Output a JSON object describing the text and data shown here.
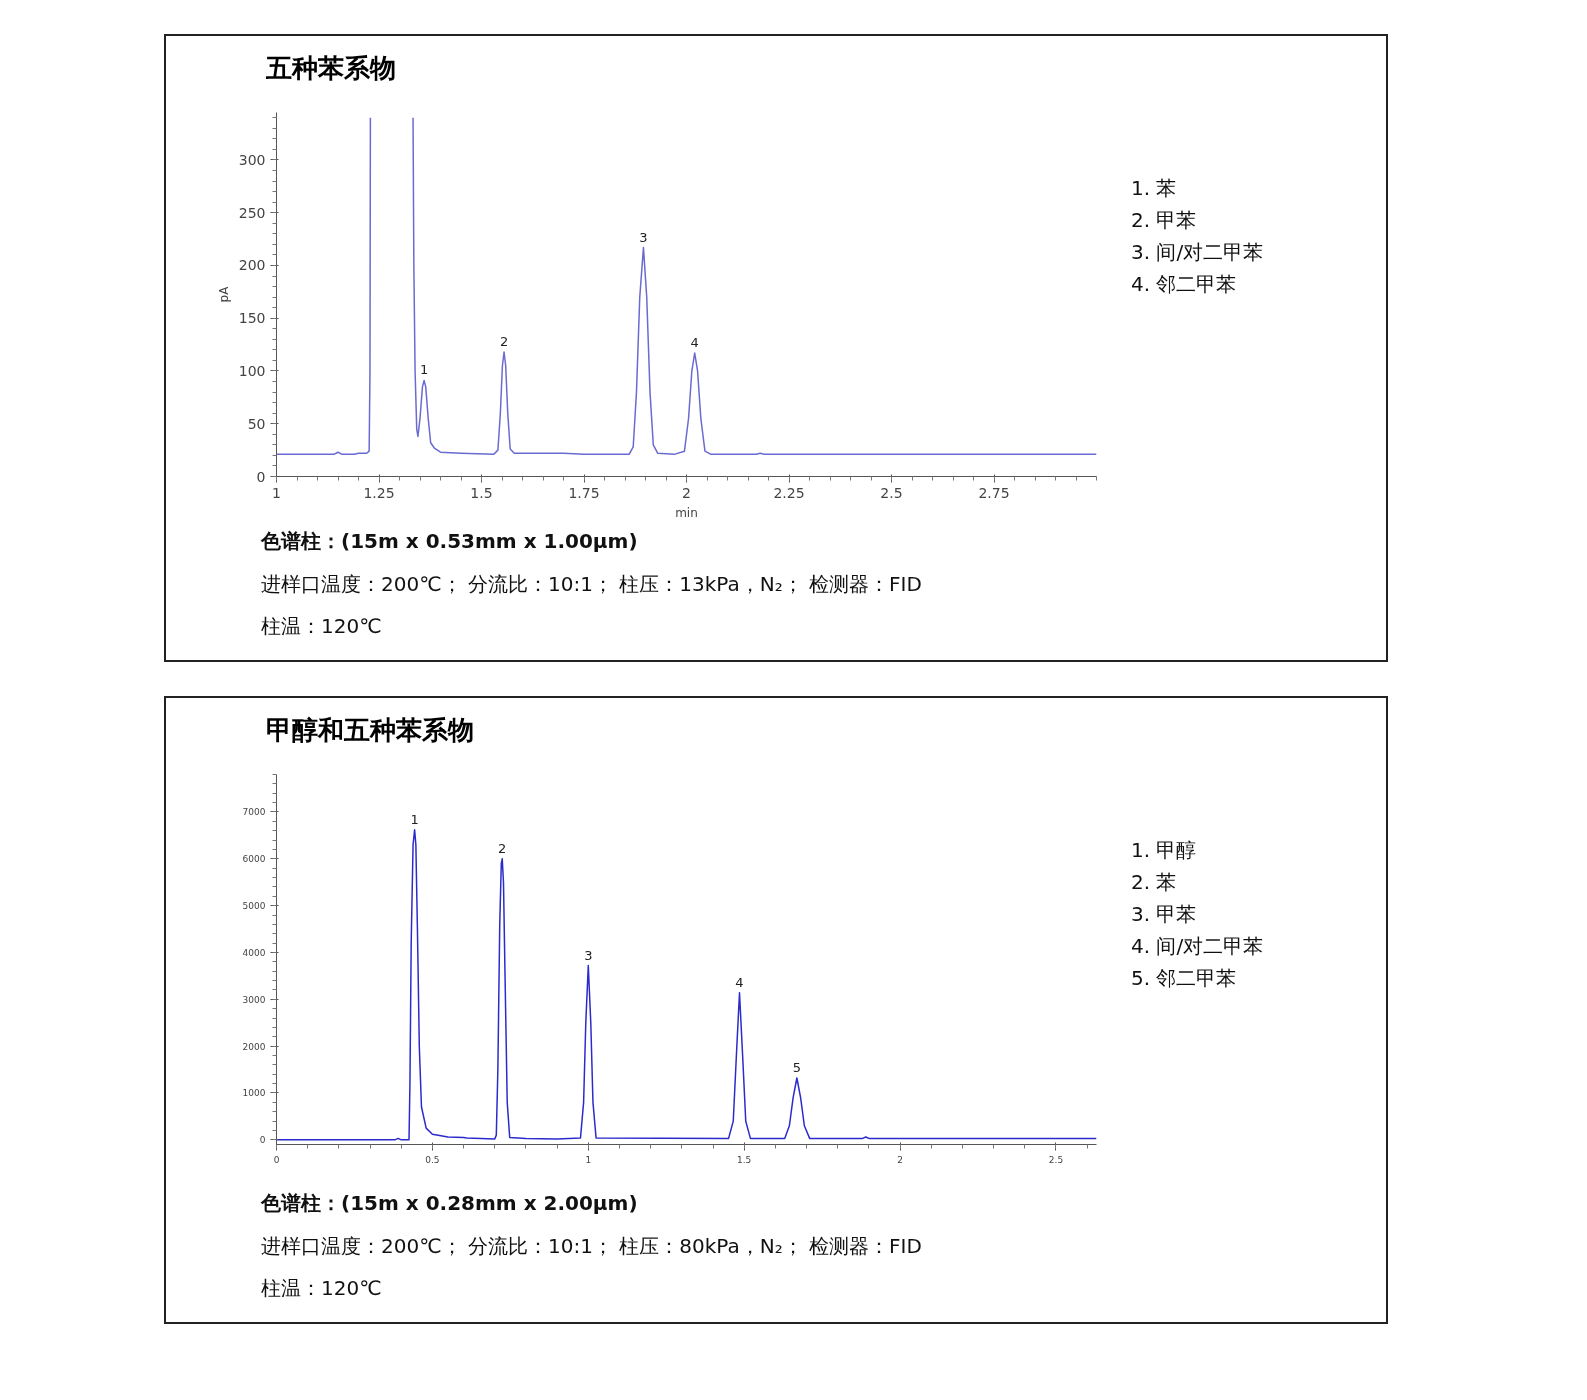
{
  "chart_data": [
    {
      "type": "line",
      "title": "五种苯系物",
      "xlabel": "min",
      "ylabel": "pA",
      "x": [
        1.0,
        1.14,
        1.15,
        1.16,
        1.19,
        1.2,
        1.22,
        1.226,
        1.228,
        1.229,
        1.28,
        1.333,
        1.335,
        1.338,
        1.342,
        1.345,
        1.35,
        1.356,
        1.36,
        1.364,
        1.37,
        1.376,
        1.385,
        1.4,
        1.45,
        1.53,
        1.54,
        1.546,
        1.551,
        1.555,
        1.559,
        1.564,
        1.57,
        1.58,
        1.7,
        1.75,
        1.86,
        1.87,
        1.878,
        1.886,
        1.895,
        1.903,
        1.911,
        1.919,
        1.93,
        1.97,
        1.995,
        2.005,
        2.013,
        2.02,
        2.027,
        2.035,
        2.045,
        2.06,
        2.17,
        2.18,
        2.19,
        3.0
      ],
      "series": [
        {
          "color": "#6a6ad2",
          "values": [
            21,
            21,
            23,
            21,
            21,
            22,
            22,
            24,
            100,
            340,
            null,
            340,
            200,
            100,
            45,
            38,
            55,
            85,
            91,
            85,
            55,
            32,
            27,
            23,
            22,
            21,
            25,
            60,
            105,
            118,
            105,
            60,
            26,
            22,
            22,
            21,
            21,
            28,
            80,
            170,
            217,
            170,
            80,
            30,
            22,
            21,
            24,
            55,
            100,
            117,
            100,
            55,
            24,
            21,
            21,
            22,
            21,
            21
          ]
        }
      ],
      "xlim": [
        1,
        3.0
      ],
      "ylim": [
        0,
        345
      ],
      "xticks": [
        1,
        1.25,
        1.5,
        1.75,
        2,
        2.25,
        2.5,
        2.75
      ],
      "yticks": [
        0,
        50,
        100,
        150,
        200,
        250,
        300
      ],
      "annotations": [
        {
          "text": "1",
          "x": 1.36,
          "y": 91
        },
        {
          "text": "2",
          "x": 1.555,
          "y": 118
        },
        {
          "text": "3",
          "x": 1.895,
          "y": 217
        },
        {
          "text": "4",
          "x": 2.02,
          "y": 117
        },
        "1.  苯",
        "2.  甲苯",
        "3.  间/对二甲苯",
        "4.  邻二甲苯",
        "色谱柱：(15m x 0.53mm x 1.00μm)",
        "进样口温度：200℃；  分流比：10:1；  柱压：13kPa，N₂；  检测器：FID",
        "柱温：120℃"
      ]
    },
    {
      "type": "line",
      "title": "甲醇和五种苯系物",
      "x": [
        0,
        0.38,
        0.39,
        0.4,
        0.425,
        0.428,
        0.432,
        0.438,
        0.443,
        0.447,
        0.452,
        0.458,
        0.465,
        0.48,
        0.5,
        0.55,
        0.6,
        0.61,
        0.7,
        0.705,
        0.71,
        0.716,
        0.721,
        0.724,
        0.728,
        0.733,
        0.74,
        0.748,
        0.8,
        0.9,
        0.975,
        0.985,
        0.992,
        1.0,
        1.008,
        1.015,
        1.025,
        1.45,
        1.465,
        1.475,
        1.485,
        1.495,
        1.505,
        1.52,
        1.63,
        1.645,
        1.657,
        1.669,
        1.681,
        1.693,
        1.71,
        1.88,
        1.89,
        1.9,
        2.63
      ],
      "series": [
        {
          "color": "#2b2bcc",
          "values": [
            0,
            0,
            30,
            0,
            0,
            1200,
            4200,
            6300,
            6620,
            6300,
            4500,
            2000,
            700,
            250,
            120,
            60,
            50,
            40,
            20,
            100,
            1500,
            4600,
            5900,
            6000,
            5500,
            3500,
            800,
            50,
            30,
            20,
            40,
            800,
            2500,
            3720,
            2500,
            800,
            40,
            30,
            400,
            1800,
            3140,
            1800,
            400,
            30,
            30,
            300,
            900,
            1320,
            900,
            300,
            30,
            30,
            60,
            30,
            30
          ]
        }
      ],
      "xlim": [
        0,
        2.63
      ],
      "ylim": [
        -100,
        7800
      ],
      "xticks": [
        0,
        0.5,
        1,
        1.5,
        2,
        2.5
      ],
      "yticks": [
        0,
        1000,
        2000,
        3000,
        4000,
        5000,
        6000,
        7000
      ],
      "annotations": [
        {
          "text": "1",
          "x": 0.443,
          "y": 6620
        },
        {
          "text": "2",
          "x": 0.724,
          "y": 6000
        },
        {
          "text": "3",
          "x": 1.0,
          "y": 3720
        },
        {
          "text": "4",
          "x": 1.485,
          "y": 3140
        },
        {
          "text": "5",
          "x": 1.669,
          "y": 1320
        },
        "1.  甲醇",
        "2.  苯",
        "3.  甲苯",
        "4.  间/对二甲苯",
        "5.  邻二甲苯",
        "色谱柱：(15m x 0.28mm x 2.00μm)",
        "进样口温度：200℃；  分流比：10:1；  柱压：80kPa，N₂；  检测器：FID",
        "柱温：120℃"
      ]
    }
  ]
}
